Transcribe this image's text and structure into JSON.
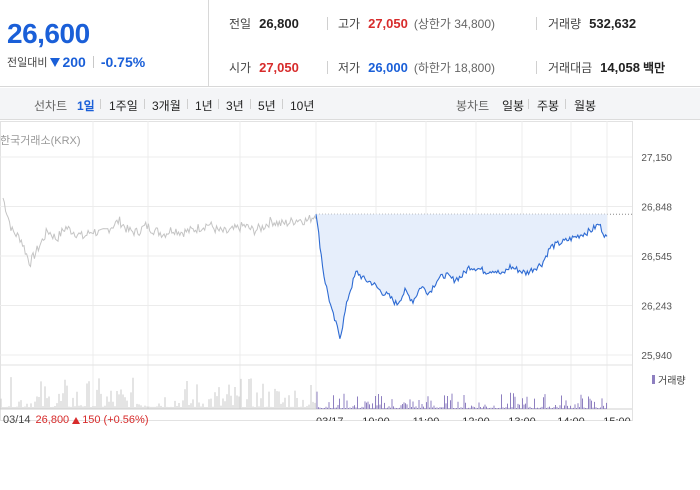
{
  "quote": {
    "price": "26,600",
    "change_label": "전일대비",
    "change_amount": "200",
    "change_pct": "-0.75%",
    "prev_close_label": "전일",
    "prev_close": "26,800",
    "high_label": "고가",
    "high": "27,050",
    "upper_limit_text": "(상한가 34,800)",
    "volume_label": "거래량",
    "volume": "532,632",
    "open_label": "시가",
    "open": "27,050",
    "low_label": "저가",
    "low": "26,000",
    "lower_limit_text": "(하한가 18,800)",
    "turnover_label": "거래대금",
    "turnover": "14,058",
    "turnover_unit": "백만"
  },
  "tabs": {
    "line_label": "선차트",
    "line": [
      "1일",
      "1주일",
      "3개월",
      "1년",
      "3년",
      "5년",
      "10년"
    ],
    "line_active": "1일",
    "candle_label": "봉차트",
    "candle": [
      "일봉",
      "주봉",
      "월봉"
    ]
  },
  "chart": {
    "exchange": "한국거래소(KRX)",
    "volume_legend": "거래량",
    "prev_day": {
      "date": "03/14",
      "price": "26,800",
      "change": "150",
      "change_pct": "(+0.56%)"
    },
    "x_ticks": [
      "03/17",
      "10:00",
      "11:00",
      "12:00",
      "13:00",
      "14:00",
      "15:00"
    ],
    "y_ticks": [
      "27,150",
      "26,848",
      "26,545",
      "26,243",
      "25,940"
    ]
  },
  "colors": {
    "price_down": "#1a5fd8",
    "price_up": "#d72b2b",
    "today_line": "#2e6bd3",
    "today_fill": "#e6eefb",
    "prev_line": "#c4c4c4",
    "volume_bar": "#8e7fc0"
  },
  "chart_data": {
    "type": "line",
    "ylim": [
      25940,
      27150
    ],
    "reference_price": 26800,
    "series": [
      {
        "session": "03/14",
        "values": [
          26900,
          26700,
          26650,
          26500,
          26600,
          26700,
          26650,
          26720,
          26690,
          26660,
          26700,
          26680,
          26720,
          26760,
          26700,
          26690,
          26730,
          26700,
          26680,
          26710,
          26690,
          26700,
          26720,
          26740,
          26700,
          26690,
          26710,
          26730,
          26700,
          26720,
          26760,
          26740,
          26750,
          26770,
          26760,
          26800
        ]
      },
      {
        "session": "03/17",
        "x": [
          "09:00",
          "09:10",
          "09:20",
          "09:30",
          "09:40",
          "09:50",
          "10:00",
          "10:10",
          "10:20",
          "10:30",
          "10:40",
          "10:50",
          "11:00",
          "11:10",
          "11:20",
          "11:30",
          "11:40",
          "11:50",
          "12:00",
          "12:10",
          "12:20",
          "12:30",
          "12:40",
          "12:50",
          "13:00",
          "13:10",
          "13:20",
          "13:30",
          "13:40",
          "13:50",
          "14:00",
          "14:10",
          "14:20",
          "14:30",
          "14:40",
          "14:50",
          "15:00"
        ],
        "values": [
          26800,
          26420,
          26200,
          26050,
          26300,
          26450,
          26400,
          26380,
          26330,
          26300,
          26250,
          26330,
          26270,
          26360,
          26320,
          26400,
          26430,
          26400,
          26420,
          26480,
          26470,
          26450,
          26460,
          26430,
          26480,
          26460,
          26440,
          26470,
          26500,
          26600,
          26620,
          26640,
          26660,
          26680,
          26700,
          26740,
          26650
        ]
      }
    ]
  }
}
